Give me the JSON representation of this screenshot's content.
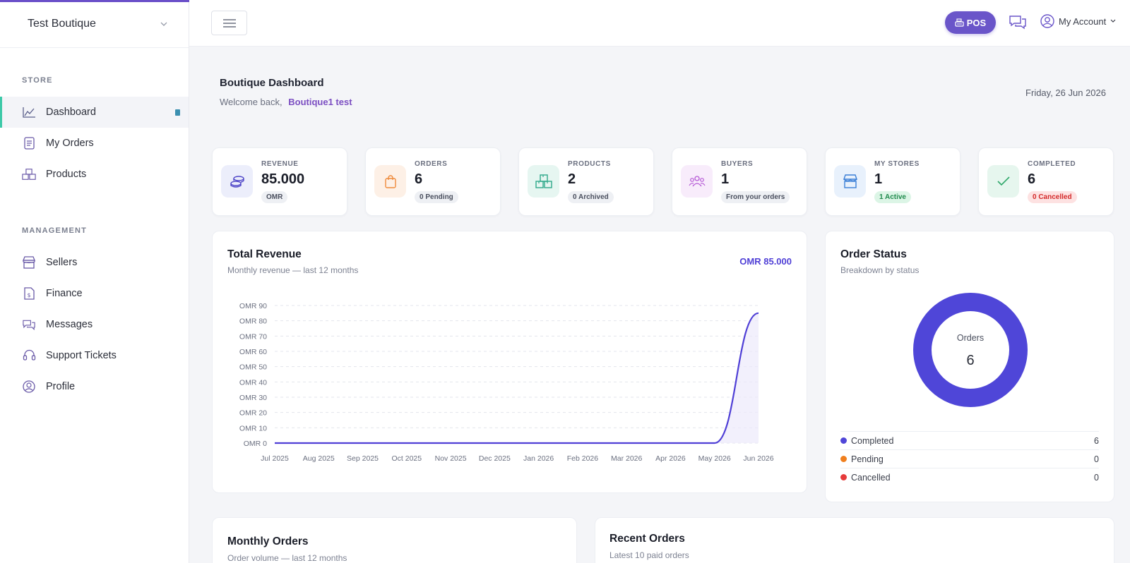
{
  "sidebar": {
    "store_name": "Test Boutique",
    "sections": [
      {
        "label": "STORE",
        "items": [
          {
            "label": "Dashboard",
            "icon": "chart-area-icon",
            "active": true
          },
          {
            "label": "My Orders",
            "icon": "receipt-icon"
          },
          {
            "label": "Products",
            "icon": "boxes-icon"
          }
        ]
      },
      {
        "label": "MANAGEMENT",
        "items": [
          {
            "label": "Sellers",
            "icon": "store-icon"
          },
          {
            "label": "Finance",
            "icon": "invoice-dollar-icon"
          },
          {
            "label": "Messages",
            "icon": "chat-icon"
          },
          {
            "label": "Support Tickets",
            "icon": "headset-icon"
          },
          {
            "label": "Profile",
            "icon": "user-circle-icon"
          }
        ]
      }
    ]
  },
  "topbar": {
    "pos_label": "POS",
    "account_label": "My Account"
  },
  "header": {
    "title": "Boutique Dashboard",
    "welcome_prefix": "Welcome back,",
    "user_name": "Boutique1 test",
    "date": "Friday, 26 Jun 2026"
  },
  "stats": [
    {
      "label": "REVENUE",
      "value": "85.000",
      "badge": "OMR",
      "icon": "coins-icon",
      "icon_bg": "#eceefb",
      "icon_color": "#4f46c8",
      "badge_bg": "#eef0f4",
      "badge_color": "#4a4f5e"
    },
    {
      "label": "ORDERS",
      "value": "6",
      "badge": "0 Pending",
      "icon": "shopping-bag-icon",
      "icon_bg": "#fdf0e6",
      "icon_color": "#ef8a3a",
      "badge_bg": "#eef0f4",
      "badge_color": "#4a4f5e"
    },
    {
      "label": "PRODUCTS",
      "value": "2",
      "badge": "0 Archived",
      "icon": "boxes-icon",
      "icon_bg": "#e6f6f1",
      "icon_color": "#2ea88a",
      "badge_bg": "#eef0f4",
      "badge_color": "#4a4f5e"
    },
    {
      "label": "BUYERS",
      "value": "1",
      "badge": "From your orders",
      "icon": "users-icon",
      "icon_bg": "#f8ecfb",
      "icon_color": "#b65bd6",
      "badge_bg": "#eef0f4",
      "badge_color": "#4a4f5e"
    },
    {
      "label": "MY STORES",
      "value": "1",
      "badge": "1 Active",
      "icon": "store-icon",
      "icon_bg": "#e8f1fc",
      "icon_color": "#3b7fd6",
      "badge_bg": "#dcf5e6",
      "badge_color": "#1f8a4c"
    },
    {
      "label": "COMPLETED",
      "value": "6",
      "badge": "0 Cancelled",
      "icon": "check-icon",
      "icon_bg": "#e6f6ee",
      "icon_color": "#2ea86a",
      "badge_bg": "#fde2e2",
      "badge_color": "#d42a2a"
    }
  ],
  "revenue_card": {
    "title": "Total Revenue",
    "subtitle": "Monthly revenue — last 12 months",
    "total": "OMR 85.000"
  },
  "status_card": {
    "title": "Order Status",
    "subtitle": "Breakdown by status",
    "center_label": "Orders",
    "center_value": "6",
    "legend": [
      {
        "label": "Completed",
        "value": "6",
        "color": "#4f46d8"
      },
      {
        "label": "Pending",
        "value": "0",
        "color": "#f07f1e"
      },
      {
        "label": "Cancelled",
        "value": "0",
        "color": "#e63b3b"
      }
    ]
  },
  "monthly_orders_card": {
    "title": "Monthly Orders",
    "subtitle": "Order volume — last 12 months"
  },
  "recent_orders_card": {
    "title": "Recent Orders",
    "subtitle": "Latest 10 paid orders"
  },
  "chart_data": [
    {
      "type": "area",
      "title": "Total Revenue",
      "x": [
        "Jul 2025",
        "Aug 2025",
        "Sep 2025",
        "Oct 2025",
        "Nov 2025",
        "Dec 2025",
        "Jan 2026",
        "Feb 2026",
        "Mar 2026",
        "Apr 2026",
        "May 2026",
        "Jun 2026"
      ],
      "series": [
        {
          "values": [
            0,
            0,
            0,
            0,
            0,
            0,
            0,
            0,
            0,
            0,
            0,
            85
          ],
          "color": "#4f3fd6"
        }
      ],
      "y_ticks": [
        "OMR 0",
        "OMR 10",
        "OMR 20",
        "OMR 30",
        "OMR 40",
        "OMR 50",
        "OMR 60",
        "OMR 70",
        "OMR 80",
        "OMR 90"
      ],
      "ylim": [
        0,
        90
      ],
      "grid": true
    },
    {
      "type": "pie",
      "title": "Order Status",
      "categories": [
        "Completed",
        "Pending",
        "Cancelled"
      ],
      "values": [
        6,
        0,
        0
      ],
      "colors": [
        "#4f46d8",
        "#f07f1e",
        "#e63b3b"
      ]
    }
  ]
}
